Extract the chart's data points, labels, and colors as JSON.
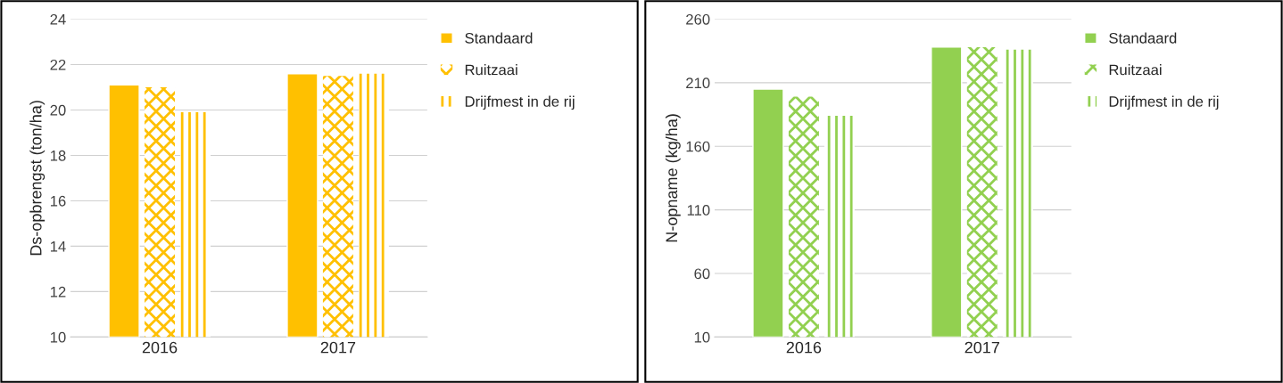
{
  "chart_data": [
    {
      "type": "bar",
      "categories": [
        "2016",
        "2017"
      ],
      "ylabel": "Ds-opbrengst (ton/ha)",
      "ylim": [
        10,
        24
      ],
      "yticks": [
        10,
        12,
        14,
        16,
        18,
        20,
        22,
        24
      ],
      "grid": "y",
      "legend": "top right",
      "series": [
        {
          "name": "Standaard",
          "color": "#ffc000",
          "values": [
            21.1,
            21.6
          ]
        },
        {
          "name": "Ruitzaai",
          "color": "#ffc000",
          "values": [
            21.0,
            21.5
          ]
        },
        {
          "name": "Drijfmest in de rij",
          "color": "#ffc000",
          "values": [
            19.9,
            21.6
          ]
        }
      ]
    },
    {
      "type": "bar",
      "categories": [
        "2016",
        "2017"
      ],
      "ylabel": "N-opname (kg/ha)",
      "ylim": [
        10,
        260
      ],
      "yticks": [
        10,
        60,
        110,
        160,
        210,
        260
      ],
      "grid": "y",
      "legend": "top right",
      "series": [
        {
          "name": "Standaard",
          "color": "#92d050",
          "values": [
            205,
            238
          ]
        },
        {
          "name": "Ruitzaai",
          "color": "#92d050",
          "values": [
            199,
            238
          ]
        },
        {
          "name": "Drijfmest in de rij",
          "color": "#92d050",
          "values": [
            184,
            236
          ]
        }
      ]
    }
  ]
}
